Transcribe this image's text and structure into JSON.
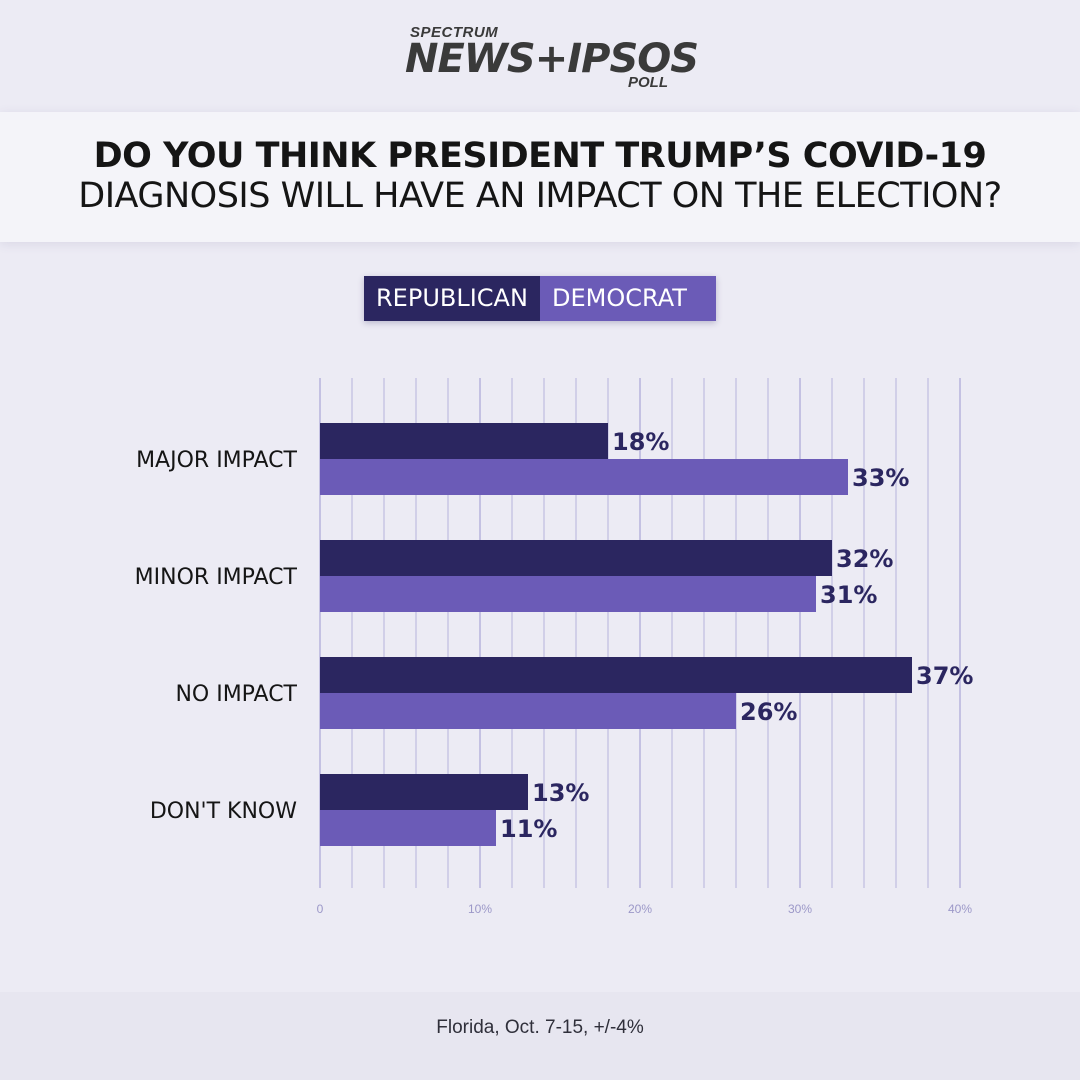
{
  "brand": {
    "top": "SPECTRUM",
    "main": "NEWS+IPSOS",
    "sub": "POLL"
  },
  "title": {
    "line1": "DO YOU THINK PRESIDENT TRUMP’S COVID-19",
    "line2": "DIAGNOSIS WILL HAVE AN IMPACT ON THE ELECTION?"
  },
  "legend": {
    "republican": "REPUBLICAN",
    "democrat": "DEMOCRAT"
  },
  "colors": {
    "republican": "#2b2660",
    "democrat": "#6b5bb7",
    "grid": "#a9a5d6",
    "label": "#2b2660"
  },
  "chart_data": {
    "type": "bar",
    "orientation": "horizontal",
    "categories": [
      "MAJOR IMPACT",
      "MINOR IMPACT",
      "NO IMPACT",
      "DON'T KNOW"
    ],
    "series": [
      {
        "name": "REPUBLICAN",
        "values": [
          18,
          32,
          37,
          13
        ]
      },
      {
        "name": "DEMOCRAT",
        "values": [
          33,
          31,
          26,
          11
        ]
      }
    ],
    "value_suffix": "%",
    "xlim": [
      0,
      40
    ],
    "ticks": [
      {
        "value": 0,
        "label": "0"
      },
      {
        "value": 10,
        "label": "10%"
      },
      {
        "value": 20,
        "label": "20%"
      },
      {
        "value": 30,
        "label": "30%"
      },
      {
        "value": 40,
        "label": "40%"
      }
    ],
    "grid": true,
    "legend_position": "top-center"
  },
  "footer": "Florida, Oct. 7-15, +/-4%"
}
